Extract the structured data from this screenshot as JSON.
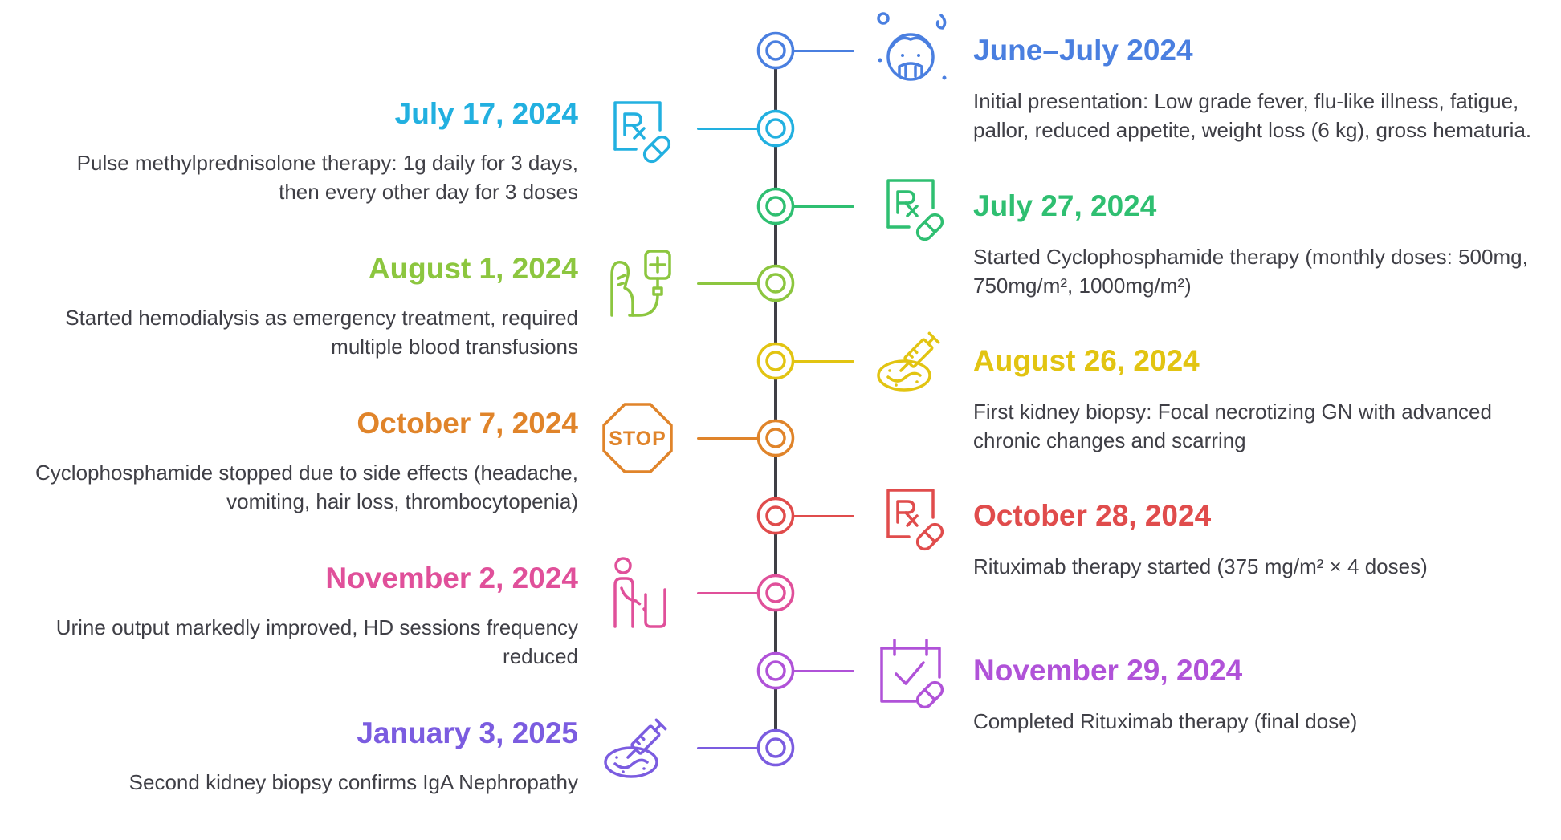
{
  "events": [
    {
      "side": "right",
      "color": "#4a7fe0",
      "icon": "elderly-person-icon",
      "date": "June–July 2024",
      "description": "Initial presentation: Low grade fever, flu-like illness, fatigue, pallor, reduced appetite, weight loss (6 kg), gross hematuria."
    },
    {
      "side": "left",
      "color": "#22b0e0",
      "icon": "prescription-pill-icon",
      "date": "July 17, 2024",
      "description": "Pulse methylprednisolone therapy: 1g daily for 3 days, then every other day for 3 doses"
    },
    {
      "side": "right",
      "color": "#2fbf71",
      "icon": "prescription-pill-icon",
      "date": "July 27, 2024",
      "description": "Started Cyclophosphamide therapy (monthly doses: 500mg, 750mg/m², 1000mg/m²)"
    },
    {
      "side": "left",
      "color": "#8cc63f",
      "icon": "dialysis-iv-bag-icon",
      "date": "August 1, 2024",
      "description": "Started hemodialysis as emergency treatment, required multiple blood transfusions"
    },
    {
      "side": "right",
      "color": "#e2c412",
      "icon": "biopsy-syringe-icon",
      "date": "August 26, 2024",
      "description": "First kidney biopsy: Focal necrotizing GN with advanced chronic changes and scarring"
    },
    {
      "side": "left",
      "color": "#e0842a",
      "icon": "stop-sign-icon",
      "stop_text": "STOP",
      "date": "October 7, 2024",
      "description": "Cyclophosphamide stopped due to side effects (headache, vomiting, hair loss, thrombocytopenia)"
    },
    {
      "side": "right",
      "color": "#e04c4c",
      "icon": "prescription-pill-icon",
      "date": "October 28, 2024",
      "description": "Rituximab therapy started (375 mg/m² × 4 doses)"
    },
    {
      "side": "left",
      "color": "#e0509a",
      "icon": "urination-icon",
      "date": "November 2, 2024",
      "description": "Urine output markedly improved, HD sessions frequency reduced"
    },
    {
      "side": "right",
      "color": "#b052d8",
      "icon": "calendar-pill-icon",
      "date": "November 29, 2024",
      "description": "Completed Rituximab therapy (final dose)"
    },
    {
      "side": "left",
      "color": "#7b5ce0",
      "icon": "biopsy-syringe-icon",
      "date": "January 3, 2025",
      "description": "Second kidney biopsy confirms IgA Nephropathy"
    }
  ]
}
